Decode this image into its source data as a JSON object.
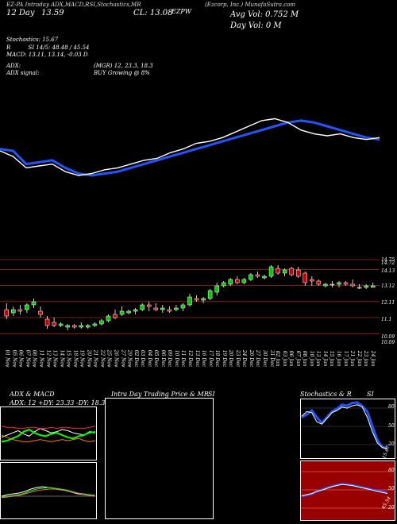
{
  "header": {
    "top_strip": "EZ-PA Intraday ADX,MACD,RSI,Stochastics,MR",
    "symbol_line": "(Ezcorp, Inc.) MunafaSutra.com",
    "day_line": "12  Day",
    "day_price": "13.59",
    "close_label": "CL: 13.08",
    "close_symbol": "EZPW",
    "avg_vol": "Avg Vol: 0.752  M",
    "day_vol": "Day Vol: 0   M"
  },
  "indicators": {
    "stochastics": "Stochastics: 15.67",
    "rsi": "R          SI 14/5: 48.48 / 45.54",
    "macd": "MACD: 13.11,  13.14, -0.03 D",
    "adx": "ADX:",
    "adx_values": "(MGR) 12, 23.3, 18.3",
    "adx_signal": "ADX  signal:",
    "adx_signal_value": "BUY Growing @ 8%"
  },
  "candle_chart": {
    "y_ticks": [
      "14.75",
      "14.72",
      "14.13",
      "13.12",
      "12.11",
      "11.1",
      "10.09",
      "10.09"
    ],
    "x_ticks": [
      "01 Nov",
      "05 Nov",
      "06 Nov",
      "07 Nov",
      "08 Nov",
      "11 Nov",
      "12 Nov",
      "13 Nov",
      "14 Nov",
      "15 Nov",
      "18 Nov",
      "19 Nov",
      "20 Nov",
      "21 Nov",
      "22 Nov",
      "25 Nov",
      "26 Nov",
      "27 Nov",
      "29 Nov",
      "02 Dec",
      "03 Dec",
      "04 Dec",
      "05 Dec",
      "06 Dec",
      "09 Dec",
      "10 Dec",
      "11 Dec",
      "12 Dec",
      "13 Dec",
      "16 Dec",
      "17 Dec",
      "18 Dec",
      "19 Dec",
      "20 Dec",
      "23 Dec",
      "24 Dec",
      "26 Dec",
      "27 Dec",
      "30 Dec",
      "31 Dec",
      "02 Jan",
      "03 Jan",
      "06 Jan",
      "07 Jan",
      "08 Jan",
      "10 Jan",
      "13 Jan",
      "14 Jan",
      "15 Jan",
      "16 Jan",
      "17 Jan",
      "21 Jan",
      "22 Jan",
      "23 Jan",
      "24 Jan"
    ]
  },
  "panels": {
    "adx_title": "ADX  & MACD",
    "adx_values": "ADX: 12  +DY: 23.33  -DY: 18.33",
    "intraday_title": "Intra  Day Trading Price  & MR",
    "intraday_suffix": "SI",
    "stoch_title": "Stochastics & R",
    "stoch_suffix": "SI",
    "stoch_ticks": [
      "80",
      "50",
      "20"
    ],
    "stoch_last": "15.67",
    "rsi_ticks": [
      "80",
      "50",
      "20"
    ],
    "rsi_last": "45.54"
  },
  "colors": {
    "up": "#00cc00",
    "down": "#cc0000",
    "ma": "#2255ff",
    "price": "#ffffff",
    "rsi_bg": "#990000"
  },
  "chart_data": {
    "type": "line",
    "title": "EZ-PA Intraday ADX,MACD,RSI,Stochastics,MR",
    "series": [
      {
        "values": [
          13.6,
          13.55,
          13.2,
          13.25,
          13.3,
          13.1,
          12.95,
          12.9,
          12.95,
          13.0,
          13.1,
          13.2,
          13.3,
          13.4,
          13.5,
          13.6,
          13.7,
          13.8,
          13.9,
          14.0,
          14.1,
          14.2,
          14.3,
          14.35,
          14.3,
          14.2,
          14.1,
          14.0,
          13.9,
          13.85
        ]
      },
      {
        "values": [
          13.55,
          13.4,
          13.1,
          13.15,
          13.2,
          13.0,
          12.9,
          12.95,
          13.05,
          13.1,
          13.2,
          13.3,
          13.35,
          13.5,
          13.6,
          13.75,
          13.8,
          13.9,
          14.05,
          14.2,
          14.35,
          14.4,
          14.3,
          14.1,
          14.0,
          13.95,
          14.0,
          13.9,
          13.85,
          13.9
        ]
      }
    ],
    "candles": [
      {
        "o": 11.6,
        "h": 12.0,
        "l": 11.0,
        "c": 11.2
      },
      {
        "o": 11.4,
        "h": 11.8,
        "l": 11.2,
        "c": 11.6
      },
      {
        "o": 11.6,
        "h": 11.9,
        "l": 11.3,
        "c": 11.5
      },
      {
        "o": 11.6,
        "h": 12.0,
        "l": 11.4,
        "c": 11.9
      },
      {
        "o": 11.9,
        "h": 12.3,
        "l": 11.7,
        "c": 12.1
      },
      {
        "o": 11.5,
        "h": 11.8,
        "l": 11.1,
        "c": 11.3
      },
      {
        "o": 11.0,
        "h": 11.2,
        "l": 10.4,
        "c": 10.6
      },
      {
        "o": 10.8,
        "h": 11.1,
        "l": 10.5,
        "c": 10.6
      },
      {
        "o": 10.6,
        "h": 10.8,
        "l": 10.5,
        "c": 10.7
      },
      {
        "o": 10.5,
        "h": 10.7,
        "l": 10.3,
        "c": 10.6
      },
      {
        "o": 10.6,
        "h": 10.7,
        "l": 10.4,
        "c": 10.5
      },
      {
        "o": 10.5,
        "h": 10.8,
        "l": 10.4,
        "c": 10.6
      },
      {
        "o": 10.5,
        "h": 10.7,
        "l": 10.4,
        "c": 10.6
      },
      {
        "o": 10.6,
        "h": 10.8,
        "l": 10.5,
        "c": 10.7
      },
      {
        "o": 10.7,
        "h": 11.0,
        "l": 10.6,
        "c": 10.9
      },
      {
        "o": 10.9,
        "h": 11.3,
        "l": 10.8,
        "c": 11.2
      },
      {
        "o": 11.3,
        "h": 11.6,
        "l": 11.0,
        "c": 11.1
      },
      {
        "o": 11.3,
        "h": 11.8,
        "l": 11.2,
        "c": 11.5
      },
      {
        "o": 11.4,
        "h": 11.6,
        "l": 11.3,
        "c": 11.5
      },
      {
        "o": 11.5,
        "h": 11.7,
        "l": 11.3,
        "c": 11.6
      },
      {
        "o": 11.6,
        "h": 12.0,
        "l": 11.5,
        "c": 11.9
      },
      {
        "o": 11.9,
        "h": 12.1,
        "l": 11.5,
        "c": 11.8
      },
      {
        "o": 11.7,
        "h": 12.0,
        "l": 11.5,
        "c": 11.6
      },
      {
        "o": 11.6,
        "h": 11.9,
        "l": 11.4,
        "c": 11.7
      },
      {
        "o": 11.6,
        "h": 11.8,
        "l": 11.4,
        "c": 11.5
      },
      {
        "o": 11.6,
        "h": 11.9,
        "l": 11.5,
        "c": 11.7
      },
      {
        "o": 11.7,
        "h": 12.0,
        "l": 11.5,
        "c": 11.9
      },
      {
        "o": 11.9,
        "h": 12.6,
        "l": 11.8,
        "c": 12.4
      },
      {
        "o": 12.3,
        "h": 12.5,
        "l": 12.1,
        "c": 12.2
      },
      {
        "o": 12.2,
        "h": 12.4,
        "l": 12.0,
        "c": 12.3
      },
      {
        "o": 12.3,
        "h": 12.9,
        "l": 12.2,
        "c": 12.8
      },
      {
        "o": 12.7,
        "h": 13.3,
        "l": 12.5,
        "c": 13.1
      },
      {
        "o": 13.1,
        "h": 13.4,
        "l": 13.0,
        "c": 13.3
      },
      {
        "o": 13.2,
        "h": 13.6,
        "l": 13.1,
        "c": 13.5
      },
      {
        "o": 13.5,
        "h": 13.7,
        "l": 13.2,
        "c": 13.3
      },
      {
        "o": 13.3,
        "h": 13.6,
        "l": 13.2,
        "c": 13.5
      },
      {
        "o": 13.5,
        "h": 13.9,
        "l": 13.4,
        "c": 13.8
      },
      {
        "o": 13.8,
        "h": 14.0,
        "l": 13.6,
        "c": 13.7
      },
      {
        "o": 13.6,
        "h": 13.8,
        "l": 13.5,
        "c": 13.7
      },
      {
        "o": 13.7,
        "h": 14.4,
        "l": 13.6,
        "c": 14.3
      },
      {
        "o": 14.2,
        "h": 14.4,
        "l": 13.8,
        "c": 13.9
      },
      {
        "o": 13.9,
        "h": 14.2,
        "l": 13.7,
        "c": 14.1
      },
      {
        "o": 14.2,
        "h": 14.3,
        "l": 13.7,
        "c": 13.8
      },
      {
        "o": 14.1,
        "h": 14.3,
        "l": 13.6,
        "c": 13.7
      },
      {
        "o": 13.9,
        "h": 14.0,
        "l": 13.1,
        "c": 13.3
      },
      {
        "o": 13.5,
        "h": 13.7,
        "l": 13.1,
        "c": 13.4
      },
      {
        "o": 13.4,
        "h": 13.5,
        "l": 13.1,
        "c": 13.2
      },
      {
        "o": 13.1,
        "h": 13.3,
        "l": 13.0,
        "c": 13.2
      },
      {
        "o": 13.2,
        "h": 13.4,
        "l": 13.0,
        "c": 13.2
      },
      {
        "o": 13.2,
        "h": 13.4,
        "l": 13.0,
        "c": 13.3
      },
      {
        "o": 13.3,
        "h": 13.4,
        "l": 13.1,
        "c": 13.2
      },
      {
        "o": 13.2,
        "h": 13.5,
        "l": 13.0,
        "c": 13.1
      },
      {
        "o": 13.0,
        "h": 13.2,
        "l": 12.9,
        "c": 13.0
      },
      {
        "o": 13.0,
        "h": 13.2,
        "l": 12.9,
        "c": 13.1
      },
      {
        "o": 13.0,
        "h": 13.3,
        "l": 13.0,
        "c": 13.1
      }
    ],
    "ylim": [
      10.0,
      14.8
    ]
  }
}
